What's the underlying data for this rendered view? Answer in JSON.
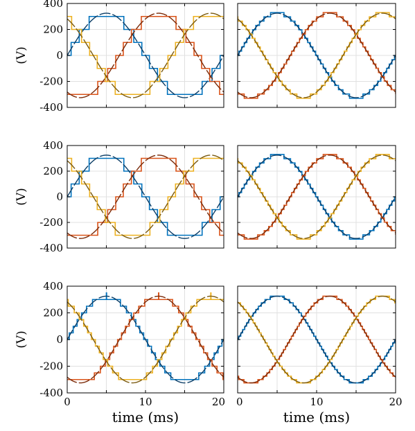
{
  "figure": {
    "colors": {
      "phase_a": "#0072BD",
      "phase_b": "#D95319",
      "phase_c": "#EDB120",
      "reference_a": "#0b3d66",
      "reference_b": "#7a2a08",
      "reference_c": "#7a5a10",
      "grid": "#e0e0e0"
    }
  },
  "chart_data": [
    {
      "type": "line",
      "ylabel": "(V)",
      "xlabel": "",
      "xlim": [
        0,
        20
      ],
      "ylim": [
        -400,
        400
      ],
      "yticks": [
        "400",
        "200",
        "0",
        "-200",
        "-400"
      ],
      "xticks": [],
      "grid": true,
      "quant_step": 100,
      "amplitude": 325,
      "frequency_hz": 50,
      "series_note": "three-phase staircase approximation with 100 V steps and dashed sinusoidal references"
    },
    {
      "type": "line",
      "ylabel": "",
      "xlabel": "",
      "xlim": [
        0,
        20
      ],
      "ylim": [
        -400,
        400
      ],
      "yticks": [],
      "xticks": [],
      "grid": true,
      "quant_step": 33,
      "amplitude": 325,
      "frequency_hz": 50
    },
    {
      "type": "line",
      "ylabel": "(V)",
      "xlabel": "",
      "xlim": [
        0,
        20
      ],
      "ylim": [
        -400,
        400
      ],
      "yticks": [
        "400",
        "200",
        "0",
        "-200",
        "-400"
      ],
      "xticks": [],
      "grid": true,
      "quant_step": 100,
      "amplitude": 325,
      "frequency_hz": 50
    },
    {
      "type": "line",
      "ylabel": "",
      "xlabel": "",
      "xlim": [
        0,
        20
      ],
      "ylim": [
        -400,
        400
      ],
      "yticks": [],
      "xticks": [],
      "grid": true,
      "quant_step": 33,
      "amplitude": 325,
      "frequency_hz": 50
    },
    {
      "type": "line",
      "ylabel": "(V)",
      "xlabel": "time (ms)",
      "xlim": [
        0,
        20
      ],
      "ylim": [
        -400,
        400
      ],
      "yticks": [
        "400",
        "200",
        "0",
        "-200",
        "-400"
      ],
      "xticks": [
        "0",
        "10",
        "20"
      ],
      "grid": true,
      "quant_step": 50,
      "amplitude": 325,
      "frequency_hz": 50
    },
    {
      "type": "line",
      "ylabel": "",
      "xlabel": "time (ms)",
      "xlim": [
        0,
        20
      ],
      "ylim": [
        -400,
        400
      ],
      "yticks": [],
      "xticks": [
        "0",
        "10",
        "20"
      ],
      "grid": true,
      "quant_step": 25,
      "amplitude": 325,
      "frequency_hz": 50
    }
  ]
}
